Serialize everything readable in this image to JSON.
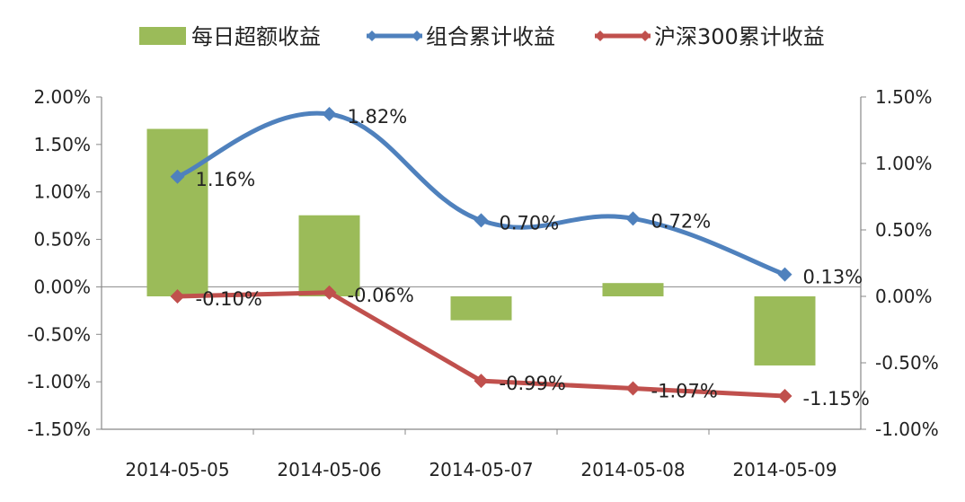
{
  "chart_data": {
    "type": "bar+line",
    "categories": [
      "2014-05-05",
      "2014-05-06",
      "2014-05-07",
      "2014-05-08",
      "2014-05-09"
    ],
    "bar_series": {
      "name": "每日超额收益",
      "axis": "right",
      "values": [
        1.26,
        0.61,
        -0.18,
        0.1,
        -0.52
      ],
      "color": "#9BBB59"
    },
    "line_series": [
      {
        "name": "组合累计收益",
        "axis": "left",
        "values": [
          1.16,
          1.82,
          0.7,
          0.72,
          0.13
        ],
        "labels": [
          "1.16%",
          "1.82%",
          "0.70%",
          "0.72%",
          "0.13%"
        ],
        "color": "#4F81BD",
        "smooth": true
      },
      {
        "name": "沪深300累计收益",
        "axis": "left",
        "values": [
          -0.1,
          -0.06,
          -0.99,
          -1.07,
          -1.15
        ],
        "labels": [
          "-0.10%",
          "-0.06%",
          "-0.99%",
          "-1.07%",
          "-1.15%"
        ],
        "color": "#C0504D",
        "smooth": false
      }
    ],
    "left_axis": {
      "min": -1.5,
      "max": 2.0,
      "step": 0.5,
      "ticks": [
        "2.00%",
        "1.50%",
        "1.00%",
        "0.50%",
        "0.00%",
        "-0.50%",
        "-1.00%",
        "-1.50%"
      ]
    },
    "right_axis": {
      "min": -1.0,
      "max": 1.5,
      "step": 0.5,
      "ticks": [
        "1.50%",
        "1.00%",
        "0.50%",
        "0.00%",
        "-0.50%",
        "-1.00%"
      ]
    },
    "gridlines": false,
    "legend_position": "top"
  }
}
